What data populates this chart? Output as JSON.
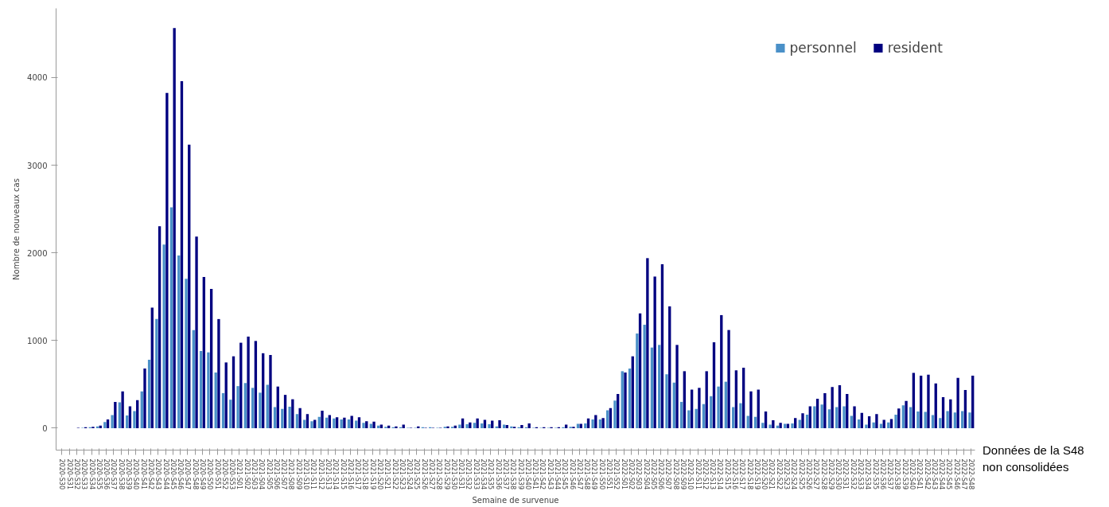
{
  "chart_data": {
    "type": "bar",
    "xlabel": "Semaine de survenue",
    "ylabel": "Nombre de nouveaux cas",
    "categories": [
      "2020-S30",
      "2020-S31",
      "2020-S32",
      "2020-S33",
      "2020-S34",
      "2020-S35",
      "2020-S36",
      "2020-S37",
      "2020-S38",
      "2020-S39",
      "2020-S40",
      "2020-S41",
      "2020-S42",
      "2020-S43",
      "2020-S44",
      "2020-S45",
      "2020-S46",
      "2020-S47",
      "2020-S48",
      "2020-S49",
      "2020-S50",
      "2020-S51",
      "2020-S52",
      "2020-S53",
      "2021-S01",
      "2021-S02",
      "2021-S03",
      "2021-S04",
      "2021-S05",
      "2021-S06",
      "2021-S07",
      "2021-S08",
      "2021-S09",
      "2021-S10",
      "2021-S11",
      "2021-S12",
      "2021-S13",
      "2021-S14",
      "2021-S15",
      "2021-S16",
      "2021-S17",
      "2021-S18",
      "2021-S19",
      "2021-S20",
      "2021-S21",
      "2021-S22",
      "2021-S23",
      "2021-S24",
      "2021-S25",
      "2021-S26",
      "2021-S27",
      "2021-S28",
      "2021-S29",
      "2021-S30",
      "2021-S31",
      "2021-S32",
      "2021-S33",
      "2021-S34",
      "2021-S35",
      "2021-S36",
      "2021-S37",
      "2021-S38",
      "2021-S39",
      "2021-S40",
      "2021-S41",
      "2021-S42",
      "2021-S43",
      "2021-S44",
      "2021-S45",
      "2021-S46",
      "2021-S47",
      "2021-S48",
      "2021-S49",
      "2021-S50",
      "2021-S51",
      "2021-S52",
      "2022-S01",
      "2022-S02",
      "2022-S03",
      "2022-S04",
      "2022-S05",
      "2022-S06",
      "2022-S07",
      "2022-S08",
      "2022-S09",
      "2022-S10",
      "2022-S11",
      "2022-S12",
      "2022-S13",
      "2022-S14",
      "2022-S15",
      "2022-S16",
      "2022-S17",
      "2022-S18",
      "2022-S19",
      "2022-S20",
      "2022-S21",
      "2022-S22",
      "2022-S23",
      "2022-S24",
      "2022-S25",
      "2022-S26",
      "2022-S27",
      "2022-S28",
      "2022-S29",
      "2022-S30",
      "2022-S31",
      "2022-S32",
      "2022-S33",
      "2022-S34",
      "2022-S35",
      "2022-S36",
      "2022-S37",
      "2022-S38",
      "2022-S39",
      "2022-S40",
      "2022-S41",
      "2022-S42",
      "2022-S43",
      "2022-S44",
      "2022-S45",
      "2022-S46",
      "2022-S47",
      "2022-S48"
    ],
    "series": [
      {
        "name": "personnel",
        "color": "#4a90c8",
        "values": [
          null,
          null,
          null,
          5,
          10,
          20,
          70,
          150,
          295,
          145,
          195,
          420,
          780,
          1245,
          2095,
          2520,
          1970,
          1705,
          1120,
          880,
          865,
          635,
          400,
          325,
          480,
          515,
          460,
          405,
          495,
          240,
          220,
          245,
          160,
          95,
          80,
          130,
          120,
          110,
          100,
          100,
          85,
          60,
          50,
          30,
          15,
          10,
          10,
          5,
          5,
          10,
          10,
          5,
          15,
          15,
          40,
          45,
          60,
          55,
          45,
          20,
          40,
          20,
          10,
          10,
          5,
          5,
          5,
          5,
          10,
          15,
          50,
          55,
          100,
          100,
          205,
          315,
          650,
          680,
          1080,
          1180,
          920,
          950,
          615,
          520,
          300,
          205,
          220,
          275,
          365,
          475,
          530,
          240,
          285,
          140,
          130,
          60,
          40,
          30,
          50,
          55,
          95,
          155,
          250,
          270,
          215,
          240,
          250,
          140,
          100,
          40,
          65,
          50,
          65,
          155,
          260,
          240,
          190,
          185,
          150,
          115,
          195,
          180,
          195,
          180
        ]
      },
      {
        "name": "resident",
        "color": "#000080",
        "values": [
          null,
          null,
          5,
          10,
          15,
          30,
          100,
          300,
          420,
          250,
          320,
          680,
          1375,
          2305,
          3825,
          4565,
          3960,
          3235,
          2185,
          1725,
          1590,
          1245,
          750,
          820,
          975,
          1045,
          995,
          855,
          835,
          475,
          380,
          330,
          230,
          160,
          95,
          200,
          150,
          125,
          120,
          140,
          125,
          80,
          75,
          40,
          30,
          20,
          40,
          5,
          20,
          5,
          5,
          5,
          20,
          30,
          110,
          65,
          110,
          95,
          85,
          90,
          35,
          15,
          35,
          55,
          10,
          10,
          10,
          10,
          40,
          15,
          50,
          110,
          150,
          115,
          230,
          390,
          635,
          820,
          1310,
          1940,
          1730,
          1870,
          1390,
          950,
          650,
          440,
          460,
          650,
          980,
          1290,
          1120,
          660,
          690,
          420,
          440,
          190,
          90,
          60,
          50,
          115,
          170,
          250,
          335,
          400,
          470,
          490,
          390,
          250,
          175,
          135,
          160,
          95,
          105,
          225,
          310,
          630,
          600,
          610,
          510,
          355,
          330,
          575,
          435,
          600
        ]
      }
    ],
    "ylim": [
      -250,
      4790
    ],
    "yticks": [
      0,
      1000,
      2000,
      3000,
      4000
    ],
    "legend": "top right",
    "annotations": [
      "Données de la S48 non consolidées"
    ]
  }
}
